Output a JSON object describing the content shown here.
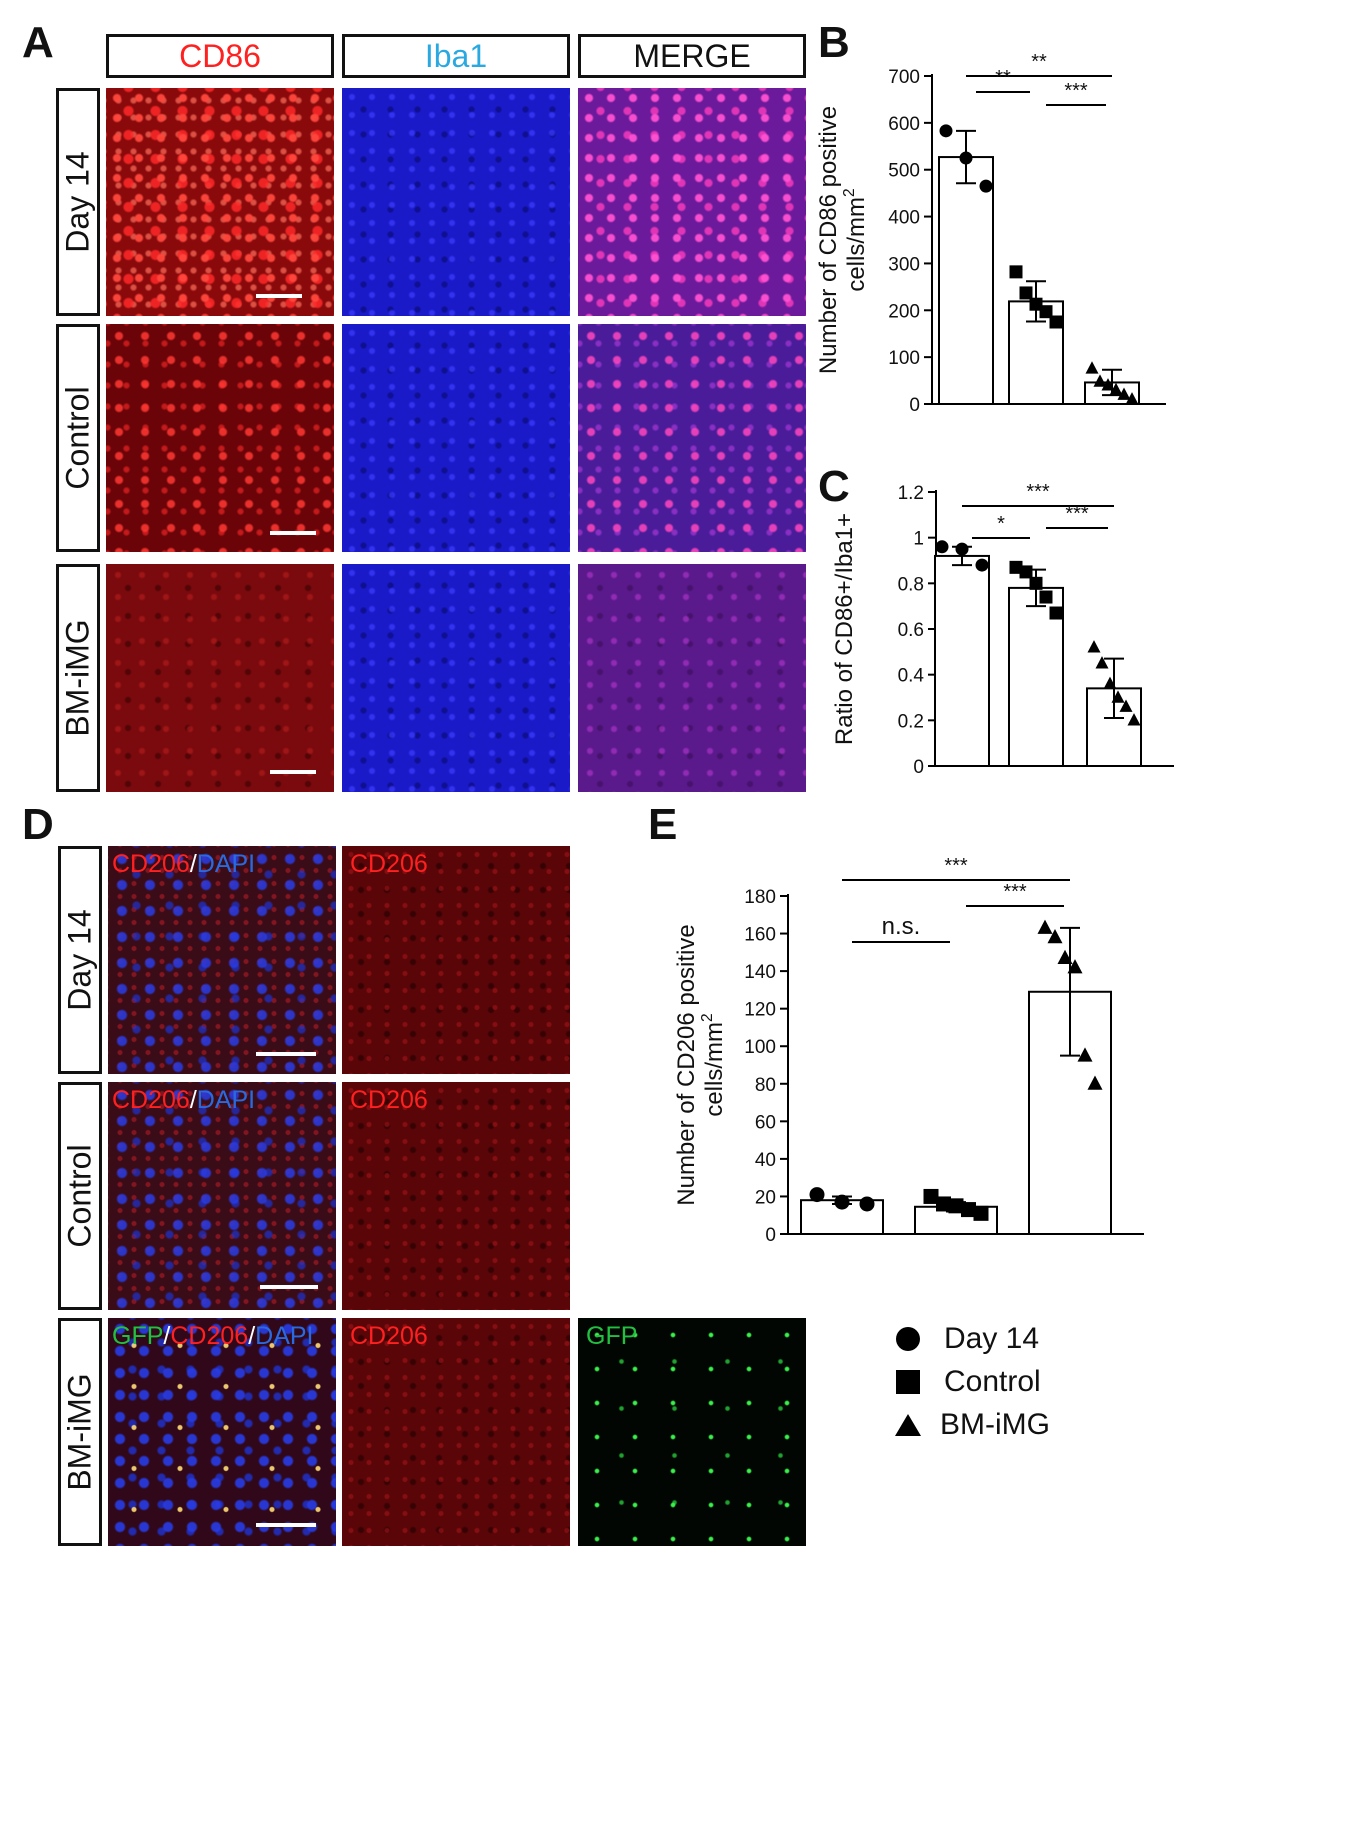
{
  "panels": {
    "A": {
      "letter": "A",
      "columns": [
        {
          "label": "CD86",
          "color": "#ff2020"
        },
        {
          "label": "Iba1",
          "color": "#2aa8e0"
        },
        {
          "label": "MERGE",
          "color": "#111111"
        }
      ],
      "rows": [
        "Day 14",
        "Control",
        "BM-iMG"
      ]
    },
    "B": {
      "letter": "B"
    },
    "C": {
      "letter": "C"
    },
    "D": {
      "letter": "D",
      "rows": [
        "Day 14",
        "Control",
        "BM-iMG"
      ],
      "image_labels": {
        "gfp": "GFP",
        "slash": "/",
        "cd206": "CD206",
        "dapi": "DAPI"
      },
      "label_colors": {
        "gfp": "#22c040",
        "cd206": "#ff2020",
        "dapi": "#2a6ae0"
      }
    },
    "E": {
      "letter": "E"
    }
  },
  "legend": {
    "items": [
      {
        "label": "Day 14",
        "marker": "circle"
      },
      {
        "label": "Control",
        "marker": "square"
      },
      {
        "label": "BM-iMG",
        "marker": "triangle"
      }
    ]
  },
  "chart_data": [
    {
      "id": "B",
      "type": "bar",
      "categories": [
        "Day 14",
        "Control",
        "BM-iMG"
      ],
      "values": [
        527,
        219,
        46
      ],
      "errors": [
        56,
        43,
        27
      ],
      "points": [
        [
          583,
          525,
          465
        ],
        [
          282,
          237,
          213,
          197,
          175
        ],
        [
          76,
          48,
          40,
          30,
          20,
          10
        ]
      ],
      "markers": [
        "circle",
        "square",
        "triangle"
      ],
      "ylabel": "Number of CD86 positive",
      "ylabel2": "cells/mm",
      "ylabel_sup": "2",
      "ylim": [
        0,
        700
      ],
      "yticks": [
        "0",
        "100",
        "200",
        "300",
        "400",
        "500",
        "600",
        "700"
      ],
      "significance": [
        {
          "from": 0,
          "to": 2,
          "label": "**",
          "level": 0
        },
        {
          "from": 0,
          "to": 1,
          "label": "**",
          "level": 1
        },
        {
          "from": 1,
          "to": 2,
          "label": "***",
          "level": 1
        }
      ]
    },
    {
      "id": "C",
      "type": "bar",
      "categories": [
        "Day 14",
        "Control",
        "BM-iMG"
      ],
      "values": [
        0.92,
        0.78,
        0.34
      ],
      "errors": [
        0.04,
        0.08,
        0.13
      ],
      "points": [
        [
          0.96,
          0.95,
          0.88
        ],
        [
          0.87,
          0.85,
          0.8,
          0.74,
          0.67
        ],
        [
          0.52,
          0.45,
          0.36,
          0.3,
          0.26,
          0.2
        ]
      ],
      "markers": [
        "circle",
        "square",
        "triangle"
      ],
      "ylabel": "Ratio of CD86+/Iba1+",
      "ylim": [
        0,
        1.2
      ],
      "yticks": [
        "0",
        "0.2",
        "0.4",
        "0.6",
        "0.8",
        "1",
        "1.2"
      ],
      "significance": [
        {
          "from": 0,
          "to": 2,
          "label": "***",
          "level": 0
        },
        {
          "from": 0,
          "to": 1,
          "label": "*",
          "level": 1
        },
        {
          "from": 1,
          "to": 2,
          "label": "***",
          "level": 1
        }
      ]
    },
    {
      "id": "E",
      "type": "bar",
      "categories": [
        "Day 14",
        "Control",
        "BM-iMG"
      ],
      "values": [
        18,
        14.5,
        129
      ],
      "errors": [
        2,
        2.5,
        34
      ],
      "points": [
        [
          21,
          17,
          16
        ],
        [
          20,
          16,
          15,
          13,
          11
        ],
        [
          163,
          158,
          147,
          142,
          95,
          80
        ]
      ],
      "markers": [
        "circle",
        "square",
        "triangle"
      ],
      "ylabel": "Number of CD206 positive",
      "ylabel2": "cells/mm",
      "ylabel_sup": "2",
      "ylim": [
        0,
        180
      ],
      "yticks": [
        "0",
        "20",
        "40",
        "60",
        "80",
        "100",
        "120",
        "140",
        "160",
        "180"
      ],
      "significance": [
        {
          "from": 0,
          "to": 2,
          "label": "***",
          "level": 0
        },
        {
          "from": 0,
          "to": 1,
          "label": "n.s.",
          "level": 1
        },
        {
          "from": 1,
          "to": 2,
          "label": "***",
          "level": 1
        }
      ]
    }
  ]
}
